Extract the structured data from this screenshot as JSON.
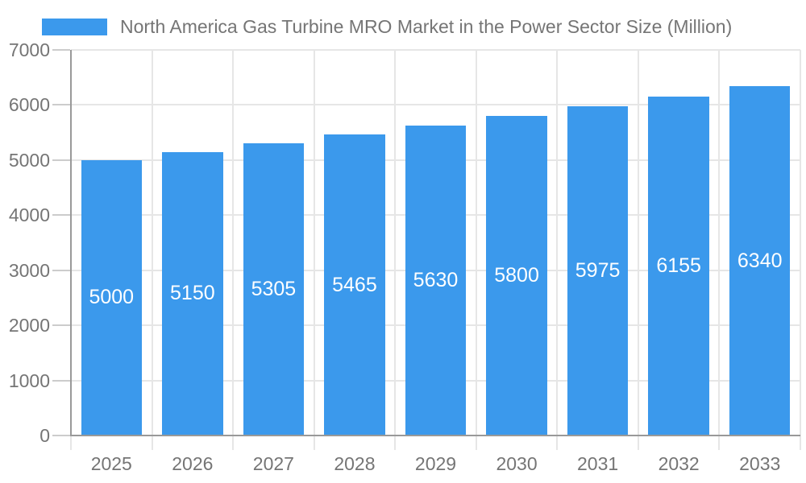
{
  "chart_data": {
    "type": "bar",
    "title": "North America Gas Turbine MRO Market in the Power Sector Size (Million)",
    "categories": [
      "2025",
      "2026",
      "2027",
      "2028",
      "2029",
      "2030",
      "2031",
      "2032",
      "2033"
    ],
    "values": [
      5000,
      5150,
      5305,
      5465,
      5630,
      5800,
      5975,
      6155,
      6340
    ],
    "series": [
      {
        "name": "North America Gas Turbine MRO Market in the Power Sector Size (Million)",
        "values": [
          5000,
          5150,
          5305,
          5465,
          5630,
          5800,
          5975,
          6155,
          6340
        ]
      }
    ],
    "xlabel": "",
    "ylabel": "",
    "ylim": [
      0,
      7000
    ],
    "ytick_step": 1000,
    "ytick_labels": [
      "0",
      "1000",
      "2000",
      "3000",
      "4000",
      "5000",
      "6000",
      "7000"
    ],
    "grid": true,
    "legend_position": "top-left",
    "bar_label_position": "center",
    "colors": {
      "bar": "#3b99ec",
      "bar_label_text": "#ffffff",
      "axis_text": "#757575",
      "axis_line": "#999999",
      "gridline": "#e6e6e6",
      "y_tick": "#cccccc",
      "background": "#ffffff"
    }
  }
}
